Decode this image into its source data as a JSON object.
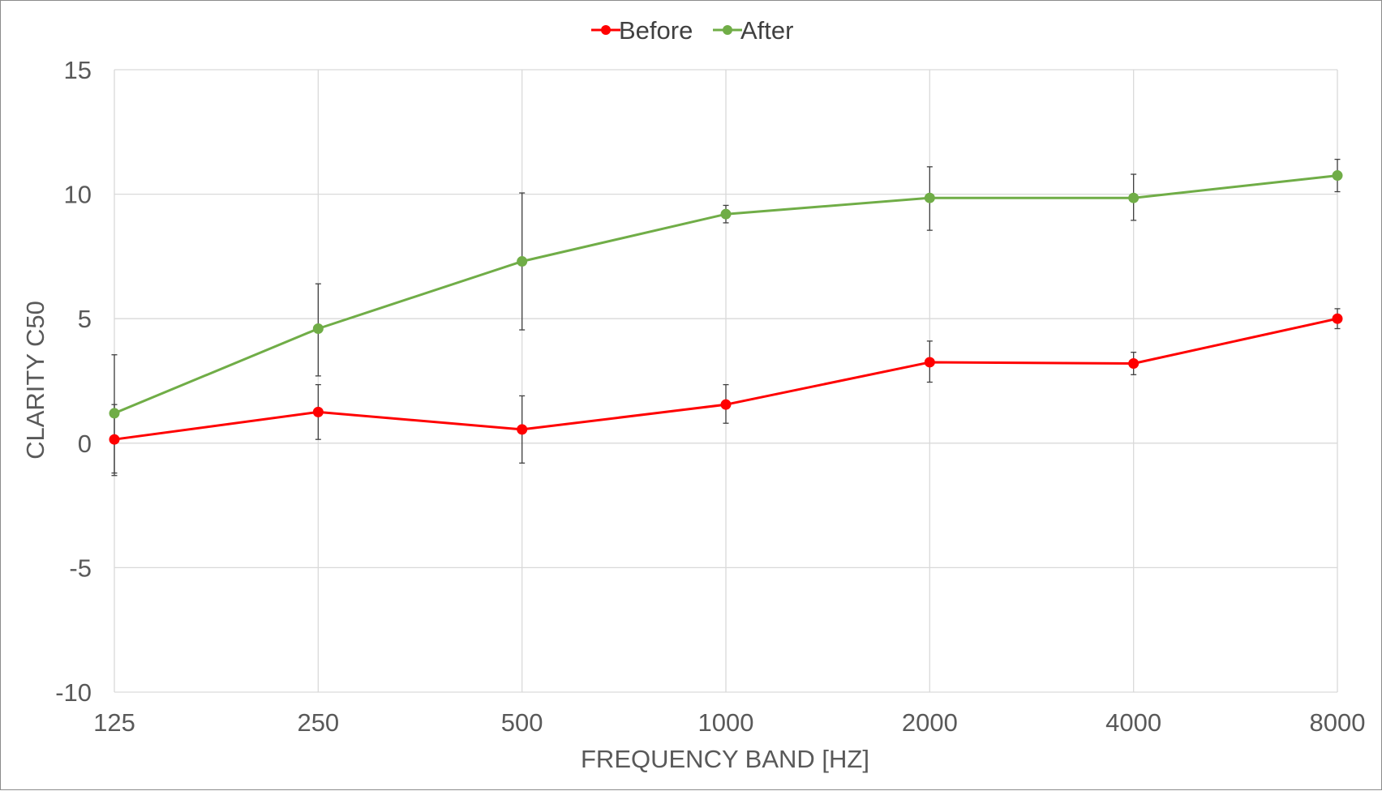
{
  "chart_data": {
    "type": "line",
    "title": "",
    "xlabel": "FREQUENCY BAND [HZ]",
    "ylabel": "CLARITY C50",
    "categories": [
      "125",
      "250",
      "500",
      "1000",
      "2000",
      "4000",
      "8000"
    ],
    "ylim": [
      -10,
      15
    ],
    "yticks": [
      -10,
      -5,
      0,
      5,
      10,
      15
    ],
    "grid": true,
    "legend_position": "top-center",
    "series": [
      {
        "name": "Before",
        "color": "#ff0000",
        "values": [
          0.15,
          1.25,
          0.55,
          1.55,
          3.25,
          3.2,
          5.0
        ],
        "error_low": [
          -1.3,
          0.15,
          -0.8,
          0.8,
          2.45,
          2.75,
          4.6
        ],
        "error_high": [
          1.55,
          2.35,
          1.9,
          2.35,
          4.1,
          3.65,
          5.4
        ]
      },
      {
        "name": "After",
        "color": "#70ad47",
        "values": [
          1.2,
          4.6,
          7.3,
          9.2,
          9.85,
          9.85,
          10.75
        ],
        "error_low": [
          -1.2,
          2.7,
          4.55,
          8.85,
          8.55,
          8.95,
          10.1
        ],
        "error_high": [
          3.55,
          6.4,
          10.05,
          9.55,
          11.1,
          10.8,
          11.4
        ]
      }
    ],
    "gridline_color": "#d9d9d9",
    "errorbar_color": "#404040"
  }
}
